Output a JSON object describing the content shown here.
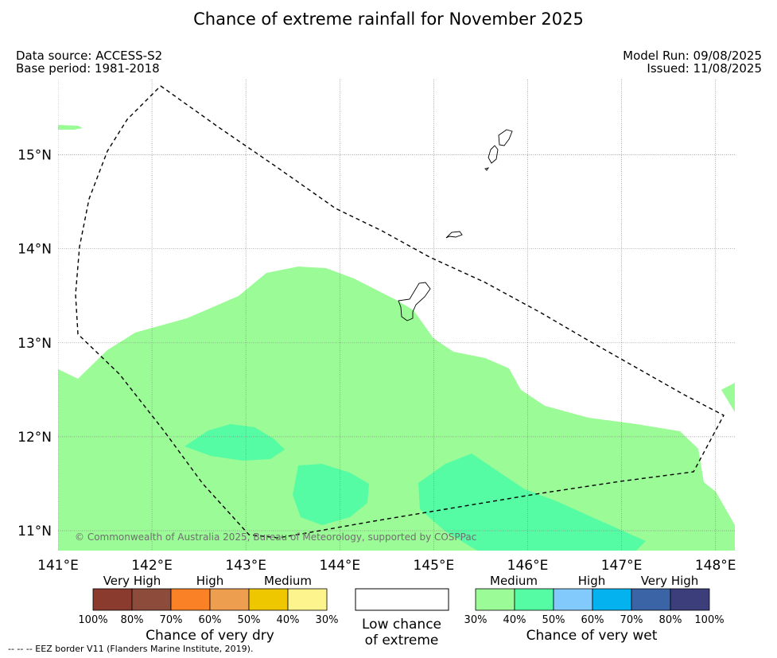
{
  "title": "Chance of extreme rainfall for November 2025",
  "meta_left": {
    "data_source": "Data source: ACCESS-S2",
    "base_period": "Base period: 1981-2018"
  },
  "meta_right": {
    "model_run": "Model Run: 09/08/2025",
    "issued": "Issued: 11/08/2025"
  },
  "map": {
    "copyright": "© Commonwealth of Australia 2025, Bureau of Meteorology, supported by COSPPac",
    "lon_ticks": [
      "141°E",
      "142°E",
      "143°E",
      "144°E",
      "145°E",
      "146°E",
      "147°E",
      "148°E"
    ],
    "lat_ticks": [
      "11°N",
      "12°N",
      "13°N",
      "14°N",
      "15°N"
    ],
    "lon_range": [
      141,
      148.2
    ],
    "lat_range": [
      10.8,
      15.8
    ],
    "gridlines": true,
    "colors": {
      "medium_wet": "#9bfb96",
      "high_wet": "#56fca3",
      "coastline": "#000000",
      "eez": "#000000"
    }
  },
  "legend_dry": {
    "categories": [
      "Very High",
      "High",
      "Medium"
    ],
    "colors": [
      "#8b3a2e",
      "#8c4b3b",
      "#fb8127",
      "#ee9e4f",
      "#efc700",
      "#fef48e"
    ],
    "ticks": [
      "100%",
      "80%",
      "70%",
      "60%",
      "50%",
      "40%",
      "30%"
    ],
    "title": "Chance of very dry"
  },
  "legend_low": {
    "line1": "Low chance",
    "line2": "of extreme"
  },
  "legend_wet": {
    "categories": [
      "Medium",
      "High",
      "Very High"
    ],
    "colors": [
      "#9bfb96",
      "#56fca3",
      "#82cafb",
      "#04b2f0",
      "#3a64a6",
      "#3b3e7a"
    ],
    "ticks": [
      "30%",
      "40%",
      "50%",
      "60%",
      "70%",
      "80%",
      "100%"
    ],
    "title": "Chance of very wet"
  },
  "footnote": "-- -- -- EEZ border V11 (Flanders Marine Institute, 2019)."
}
